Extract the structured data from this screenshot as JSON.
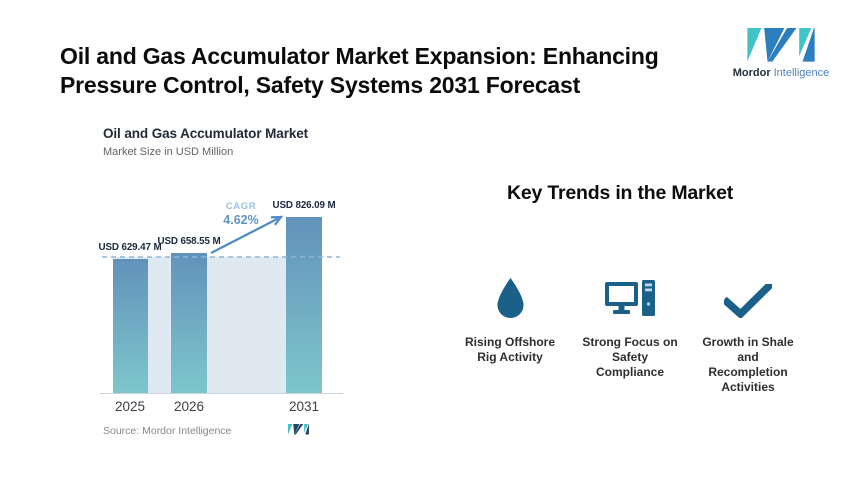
{
  "header": {
    "title_line1": "Oil and Gas Accumulator Market Expansion: Enhancing",
    "title_line2": "Pressure Control, Safety Systems 2031 Forecast",
    "brand": {
      "bold": "Mordor",
      "light": "Intelligence"
    }
  },
  "chart": {
    "title": "Oil and Gas Accumulator Market",
    "subtitle": "Market Size in USD Million",
    "cagr_label": "CAGR",
    "cagr_value": "4.62%",
    "source": "Source: Mordor Intelligence"
  },
  "chart_data": {
    "type": "bar",
    "title": "Oil and Gas Accumulator Market",
    "ylabel": "Market Size in USD Million",
    "categories": [
      "2025",
      "2026",
      "2031"
    ],
    "values": [
      629.47,
      658.55,
      826.09
    ],
    "value_labels": [
      "USD 629.47 M",
      "USD 658.55 M",
      "USD 826.09 M"
    ],
    "ylim": [
      0,
      826.09
    ],
    "grid": false,
    "legend": "none",
    "annotations": [
      "Dashed horizontal reference line at the 2025 value level",
      "Arrow from 2026 bar to 2031 bar labeled CAGR 4.62%",
      "Light blue band behind bars from reference line down to baseline"
    ]
  },
  "trends": {
    "heading": "Key Trends in the Market",
    "items": [
      {
        "icon": "water-drop-icon",
        "label": "Rising Offshore Rig Activity",
        "lines": [
          "Rising Offshore",
          "Rig Activity"
        ]
      },
      {
        "icon": "desktop-computer-icon",
        "label": "Strong Focus on Safety Compliance",
        "lines": [
          "Strong Focus on",
          "Safety",
          "Compliance"
        ]
      },
      {
        "icon": "checkmark-icon",
        "label": "Growth in Shale and Recompletion Activities",
        "lines": [
          "Growth in Shale",
          "and",
          "Recompletion",
          "Activities"
        ]
      }
    ]
  },
  "colors": {
    "bar_gradient_top": "#6292bb",
    "bar_gradient_bottom": "#7dc6cb",
    "band": "#dfe9f2",
    "dashed_line": "#8fb6d9",
    "arrow": "#4e8ac4",
    "cagr_label": "#9cc0df",
    "cagr_value": "#5d95ca",
    "trend_icon": "#1a6089",
    "logo_teal": "#40c4c8",
    "logo_blue": "#2c7ebf",
    "title_text": "#0b0b0b",
    "value_label_text": "#1b2a40",
    "source_text": "#85888c"
  }
}
